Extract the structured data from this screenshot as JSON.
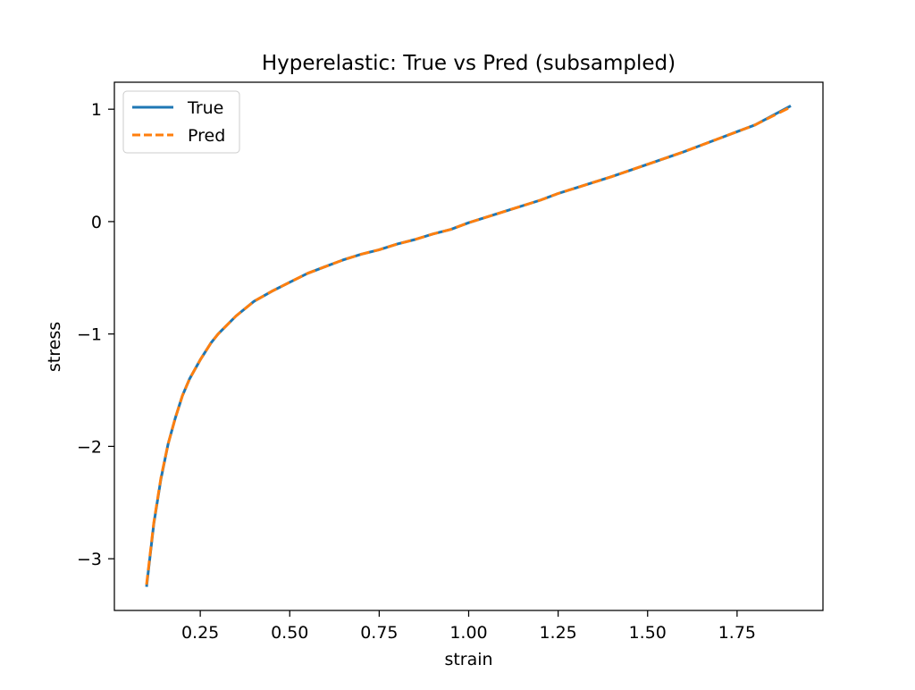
{
  "chart_data": {
    "type": "line",
    "title": "Hyperelastic: True vs Pred (subsampled)",
    "xlabel": "strain",
    "ylabel": "stress",
    "xlim": [
      0.01,
      1.99
    ],
    "ylim": [
      -3.46,
      1.24
    ],
    "xticks": [
      0.25,
      0.5,
      0.75,
      1.0,
      1.25,
      1.5,
      1.75
    ],
    "xtick_labels": [
      "0.25",
      "0.50",
      "0.75",
      "1.00",
      "1.25",
      "1.50",
      "1.75"
    ],
    "yticks": [
      -3,
      -2,
      -1,
      0,
      1
    ],
    "ytick_labels": [
      "−3",
      "−2",
      "−1",
      "0",
      "1"
    ],
    "grid": false,
    "legend_position": "top-left",
    "series": [
      {
        "name": "True",
        "color": "#1f77b4",
        "style": "solid",
        "x": [
          0.1,
          0.12,
          0.14,
          0.16,
          0.18,
          0.2,
          0.22,
          0.25,
          0.28,
          0.3,
          0.35,
          0.4,
          0.45,
          0.5,
          0.55,
          0.6,
          0.65,
          0.7,
          0.75,
          0.8,
          0.85,
          0.9,
          0.95,
          1.0,
          1.1,
          1.2,
          1.25,
          1.3,
          1.4,
          1.5,
          1.6,
          1.7,
          1.75,
          1.8,
          1.9
        ],
        "y": [
          -3.25,
          -2.69,
          -2.29,
          -1.98,
          -1.75,
          -1.55,
          -1.4,
          -1.23,
          -1.08,
          -1.0,
          -0.84,
          -0.71,
          -0.62,
          -0.54,
          -0.46,
          -0.4,
          -0.34,
          -0.29,
          -0.25,
          -0.2,
          -0.16,
          -0.11,
          -0.07,
          -0.01,
          0.09,
          0.19,
          0.25,
          0.3,
          0.4,
          0.51,
          0.62,
          0.74,
          0.8,
          0.86,
          1.03
        ]
      },
      {
        "name": "Pred",
        "color": "#ff7f0e",
        "style": "dashed",
        "x": [
          0.1,
          0.12,
          0.14,
          0.16,
          0.18,
          0.2,
          0.22,
          0.25,
          0.28,
          0.3,
          0.35,
          0.4,
          0.45,
          0.5,
          0.55,
          0.6,
          0.65,
          0.7,
          0.75,
          0.8,
          0.85,
          0.9,
          0.95,
          1.0,
          1.1,
          1.2,
          1.25,
          1.3,
          1.4,
          1.5,
          1.6,
          1.7,
          1.75,
          1.8,
          1.9
        ],
        "y": [
          -3.23,
          -2.68,
          -2.28,
          -1.98,
          -1.75,
          -1.55,
          -1.4,
          -1.23,
          -1.08,
          -1.0,
          -0.84,
          -0.71,
          -0.62,
          -0.54,
          -0.46,
          -0.4,
          -0.34,
          -0.29,
          -0.25,
          -0.2,
          -0.16,
          -0.11,
          -0.07,
          -0.01,
          0.09,
          0.19,
          0.25,
          0.3,
          0.4,
          0.51,
          0.62,
          0.74,
          0.8,
          0.86,
          1.02
        ]
      }
    ]
  }
}
